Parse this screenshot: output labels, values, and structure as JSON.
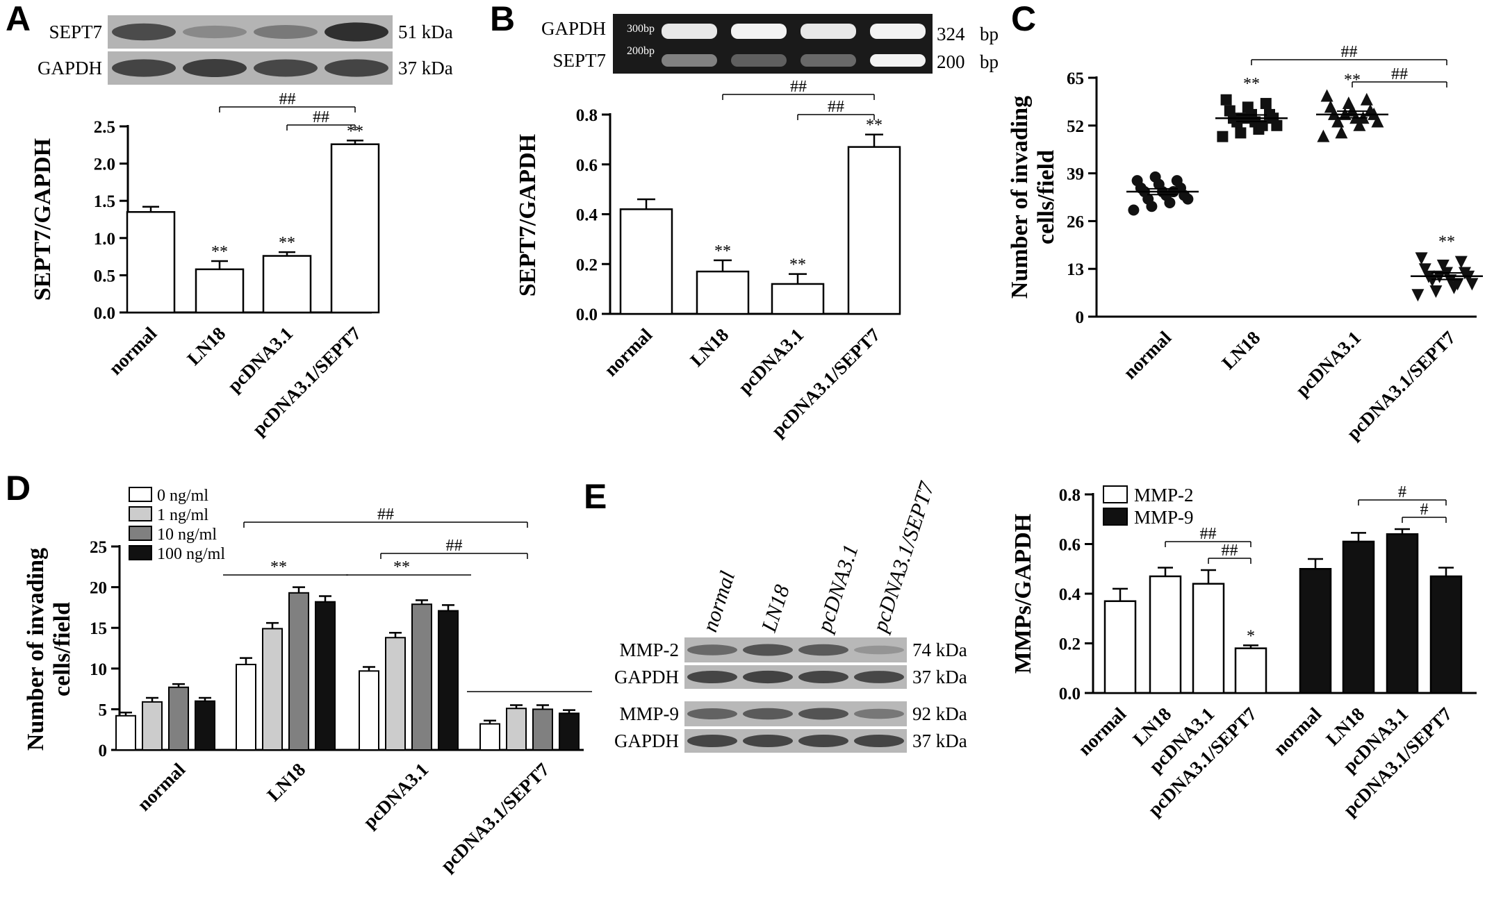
{
  "chart_data": [
    {
      "panel": "A",
      "type": "bar",
      "categories": [
        "normal",
        "LN18",
        "pcDNA3.1",
        "pcDNA3.1/SEPT7"
      ],
      "values": [
        1.35,
        0.58,
        0.76,
        2.26
      ],
      "errors": [
        0.07,
        0.11,
        0.05,
        0.05
      ],
      "ylabel": "SEPT7/GAPDH",
      "ylim": [
        0,
        2.5
      ],
      "yticks": [
        "0.0",
        "0.5",
        "1.0",
        "1.5",
        "2.0",
        "2.5"
      ],
      "significance": [
        "",
        "**",
        "**",
        "**"
      ],
      "brackets": [
        {
          "from": 1,
          "to": 3,
          "label": "##"
        },
        {
          "from": 2,
          "to": 3,
          "label": "##"
        }
      ],
      "blot": {
        "rows": [
          {
            "name": "SEPT7",
            "size": "51 kDa"
          },
          {
            "name": "GAPDH",
            "size": "37 kDa"
          }
        ]
      }
    },
    {
      "panel": "B",
      "type": "bar",
      "categories": [
        "normal",
        "LN18",
        "pcDNA3.1",
        "pcDNA3.1/SEPT7"
      ],
      "values": [
        0.42,
        0.17,
        0.12,
        0.67
      ],
      "errors": [
        0.04,
        0.045,
        0.04,
        0.05
      ],
      "ylabel": "SEPT7/GAPDH",
      "ylim": [
        0,
        0.8
      ],
      "yticks": [
        "0.0",
        "0.2",
        "0.4",
        "0.6",
        "0.8"
      ],
      "significance": [
        "",
        "**",
        "**",
        "**"
      ],
      "brackets": [
        {
          "from": 1,
          "to": 3,
          "label": "##"
        },
        {
          "from": 2,
          "to": 3,
          "label": "##"
        }
      ],
      "gel": {
        "rows": [
          {
            "name": "GAPDH",
            "size": "324",
            "unit": "bp"
          },
          {
            "name": "SEPT7",
            "size": "200",
            "unit": "bp"
          }
        ],
        "markers": [
          "300bp",
          "200bp"
        ]
      }
    },
    {
      "panel": "C",
      "type": "scatter",
      "categories": [
        "normal",
        "LN18",
        "pcDNA3.1",
        "pcDNA3.1/SEPT7"
      ],
      "ylabel": "Number of invading cells/field",
      "ylim": [
        0,
        65
      ],
      "yticks": [
        "0",
        "13",
        "26",
        "39",
        "52",
        "65"
      ],
      "means": [
        34,
        54,
        55,
        11
      ],
      "sems": [
        0.8,
        0.9,
        0.9,
        0.9
      ],
      "points": [
        [
          29,
          30,
          31,
          32,
          32,
          33,
          33,
          34,
          34,
          35,
          35,
          36,
          37,
          37,
          38,
          34
        ],
        [
          49,
          50,
          51,
          52,
          53,
          53,
          54,
          54,
          55,
          55,
          56,
          57,
          58,
          59,
          54,
          52
        ],
        [
          49,
          50,
          52,
          53,
          53,
          54,
          55,
          55,
          56,
          56,
          57,
          58,
          59,
          60,
          55,
          54
        ],
        [
          6,
          7,
          8,
          9,
          10,
          10,
          11,
          11,
          12,
          12,
          13,
          14,
          15,
          16,
          11,
          9
        ]
      ],
      "markers": [
        "circle",
        "square",
        "triangle-up",
        "triangle-down"
      ],
      "significance": [
        "",
        "**",
        "**",
        "**"
      ],
      "brackets": [
        {
          "from": 1,
          "to": 3,
          "label": "##"
        },
        {
          "from": 2,
          "to": 3,
          "label": "##"
        }
      ]
    },
    {
      "panel": "D",
      "type": "bar",
      "categories": [
        "normal",
        "LN18",
        "pcDNA3.1",
        "pcDNA3.1/SEPT7"
      ],
      "series": [
        {
          "name": "0 ng/ml",
          "values": [
            4.2,
            10.5,
            9.7,
            3.2
          ],
          "errors": [
            0.4,
            0.8,
            0.5,
            0.4
          ],
          "color": "#ffffff"
        },
        {
          "name": "1 ng/ml",
          "values": [
            5.9,
            14.9,
            13.8,
            5.1
          ],
          "errors": [
            0.5,
            0.7,
            0.6,
            0.4
          ],
          "color": "#cccccc"
        },
        {
          "name": "10 ng/ml",
          "values": [
            7.7,
            19.3,
            17.9,
            5.0
          ],
          "errors": [
            0.4,
            0.7,
            0.5,
            0.5
          ],
          "color": "#808080"
        },
        {
          "name": "100 ng/ml",
          "values": [
            6.0,
            18.2,
            17.1,
            4.5
          ],
          "errors": [
            0.4,
            0.7,
            0.7,
            0.4
          ],
          "color": "#111111"
        }
      ],
      "ylabel": "Number of invading cells/field",
      "ylim": [
        0,
        25
      ],
      "yticks": [
        "0",
        "5",
        "10",
        "15",
        "20",
        "25"
      ],
      "group_lines": [
        {
          "group": 1,
          "label": "**"
        },
        {
          "group": 2,
          "label": "**"
        },
        {
          "group": 3,
          "label": ""
        }
      ],
      "brackets": [
        {
          "from": 1,
          "to": 3,
          "label": "##"
        },
        {
          "from": 2,
          "to": 3,
          "label": "##"
        }
      ]
    },
    {
      "panel": "E",
      "type": "bar",
      "categories": [
        "normal",
        "LN18",
        "pcDNA3.1",
        "pcDNA3.1/SEPT7"
      ],
      "series": [
        {
          "name": "MMP-2",
          "values": [
            0.37,
            0.47,
            0.44,
            0.18
          ],
          "errors": [
            0.05,
            0.035,
            0.055,
            0.012
          ],
          "color": "#ffffff"
        },
        {
          "name": "MMP-9",
          "values": [
            0.5,
            0.61,
            0.64,
            0.47
          ],
          "errors": [
            0.04,
            0.035,
            0.02,
            0.035
          ],
          "color": "#111111"
        }
      ],
      "ylabel": "MMPs/GAPDH",
      "ylim": [
        0,
        0.8
      ],
      "yticks": [
        "0.0",
        "0.2",
        "0.4",
        "0.6",
        "0.8"
      ],
      "significance": [
        [
          "",
          "",
          "",
          "*"
        ],
        [
          "",
          "",
          "",
          ""
        ]
      ],
      "brackets": [
        {
          "series": 0,
          "from": 1,
          "to": 3,
          "label": "##"
        },
        {
          "series": 0,
          "from": 2,
          "to": 3,
          "label": "##"
        },
        {
          "series": 1,
          "from": 1,
          "to": 3,
          "label": "#"
        },
        {
          "series": 1,
          "from": 2,
          "to": 3,
          "label": "#"
        }
      ],
      "blot": {
        "rows": [
          {
            "name": "MMP-2",
            "size": "74 kDa"
          },
          {
            "name": "GAPDH",
            "size": "37 kDa"
          },
          {
            "name": "MMP-9",
            "size": "92 kDa"
          },
          {
            "name": "GAPDH",
            "size": "37 kDa"
          }
        ]
      }
    }
  ]
}
